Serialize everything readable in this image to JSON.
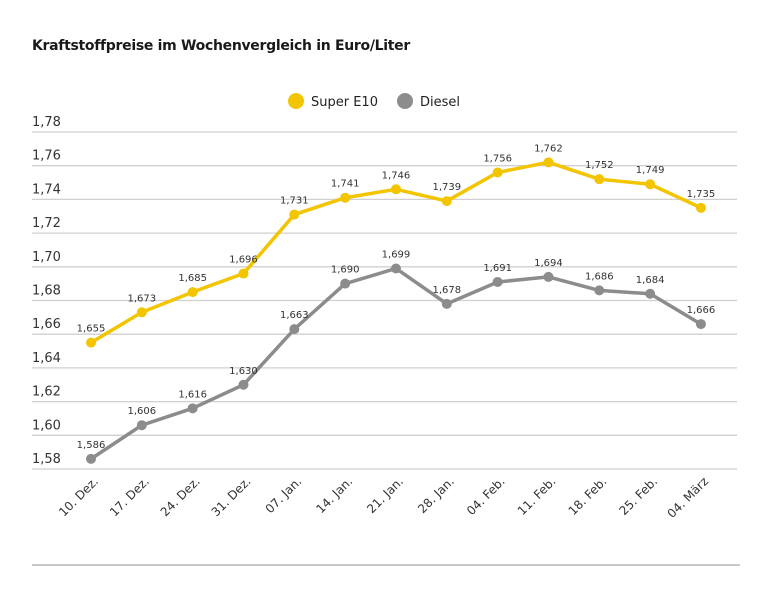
{
  "chart_data": {
    "type": "line",
    "title": "Kraftstoffpreise im Wochenvergleich in Euro/Liter",
    "categories": [
      "10. Dez.",
      "17. Dez.",
      "24. Dez.",
      "31. Dez.",
      "07. Jan.",
      "14. Jan.",
      "21. Jan.",
      "28. Jan.",
      "04. Feb.",
      "11. Feb.",
      "18. Feb.",
      "25. Feb.",
      "04. März"
    ],
    "series": [
      {
        "name": "Super E10",
        "color": "#f2c500",
        "values": [
          1.655,
          1.673,
          1.685,
          1.696,
          1.731,
          1.741,
          1.746,
          1.739,
          1.756,
          1.762,
          1.752,
          1.749,
          1.735
        ],
        "labels": [
          "1,655",
          "1,673",
          "1,685",
          "1,696",
          "1,731",
          "1,741",
          "1,746",
          "1,739",
          "1,756",
          "1,762",
          "1,752",
          "1,749",
          "1,735"
        ]
      },
      {
        "name": "Diesel",
        "color": "#8c8c8c",
        "values": [
          1.586,
          1.606,
          1.616,
          1.63,
          1.663,
          1.69,
          1.699,
          1.678,
          1.691,
          1.694,
          1.686,
          1.684,
          1.666
        ],
        "labels": [
          "1,586",
          "1,606",
          "1,616",
          "1,630",
          "1,663",
          "1,690",
          "1,699",
          "1,678",
          "1,691",
          "1,694",
          "1,686",
          "1,684",
          "1,666"
        ]
      }
    ],
    "yticks": [
      1.58,
      1.6,
      1.62,
      1.64,
      1.66,
      1.68,
      1.7,
      1.72,
      1.74,
      1.76,
      1.78
    ],
    "ytick_labels": [
      "1,58",
      "1,60",
      "1,62",
      "1,64",
      "1,66",
      "1,68",
      "1,70",
      "1,72",
      "1,74",
      "1,76",
      "1,78"
    ],
    "ylim": [
      1.58,
      1.78
    ],
    "grid": true,
    "legend": "top-center"
  }
}
